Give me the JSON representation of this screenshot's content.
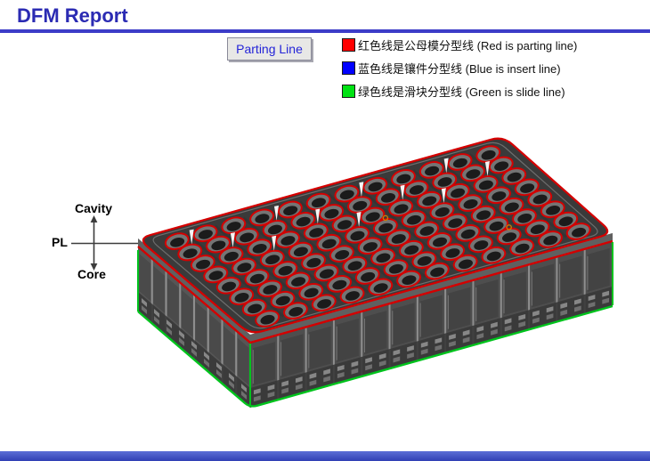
{
  "header": {
    "title": "DFM Report",
    "accent_color": "#2b2bb3",
    "rule_color": "#3c3cc8"
  },
  "labels": {
    "parting_line": "Parting Line"
  },
  "legend": {
    "items": [
      {
        "icon": "red-swatch",
        "color": "#ff0000",
        "label": "红色线是公母模分型线 (Red is parting line)"
      },
      {
        "icon": "blue-swatch",
        "color": "#0000ff",
        "label": "蓝色线是镶件分型线 (Blue is insert line)"
      },
      {
        "icon": "green-swatch",
        "color": "#00e213",
        "label": "绿色线是滑块分型线 (Green is slide line)"
      }
    ]
  },
  "annotation": {
    "cavity": "Cavity",
    "pl": "PL",
    "core": "Core"
  },
  "model": {
    "description": "Isometric CAD view of 96-well deep well plate with mold parting lines",
    "wells": {
      "rows": 8,
      "cols": 12
    },
    "colors": {
      "parting_line": "#d40000",
      "slide_line": "#00c31d",
      "top_face": "#3a3a3a",
      "left_wall": "#565656",
      "right_wall": "#4e4e4e",
      "rim_band": "#606060",
      "tube_ring": "#747474",
      "well_bore": "#1b1b1b"
    }
  },
  "footer": {
    "bar_top_color": "#5b6ed6",
    "bar_bottom_color": "#3140b4"
  }
}
